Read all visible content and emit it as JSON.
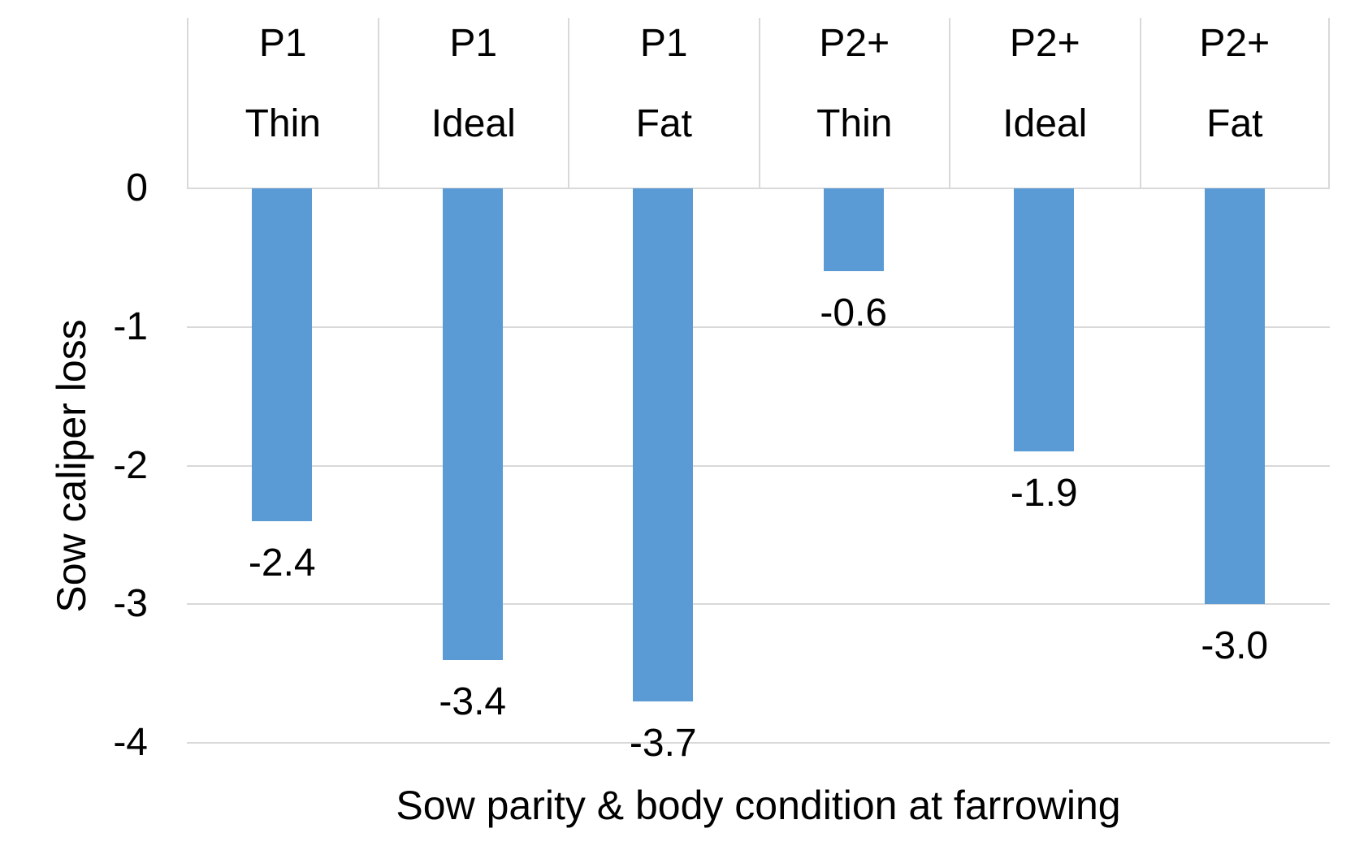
{
  "chart_data": {
    "type": "bar",
    "title": "",
    "xlabel": "Sow parity & body condition at farrowing",
    "ylabel": "Sow caliper loss",
    "categories": [
      {
        "parity": "P1",
        "condition": "Thin"
      },
      {
        "parity": "P1",
        "condition": "Ideal"
      },
      {
        "parity": "P1",
        "condition": "Fat"
      },
      {
        "parity": "P2+",
        "condition": "Thin"
      },
      {
        "parity": "P2+",
        "condition": "Ideal"
      },
      {
        "parity": "P2+",
        "condition": "Fat"
      }
    ],
    "values": [
      -2.4,
      -3.4,
      -3.7,
      -0.6,
      -1.9,
      -3.0
    ],
    "data_labels": [
      "-2.4",
      "-3.4",
      "-3.7",
      "-0.6",
      "-1.9",
      "-3.0"
    ],
    "yticks": [
      0,
      -1,
      -2,
      -3,
      -4
    ],
    "ytick_labels": [
      "0",
      "-1",
      "-2",
      "-3",
      "-4"
    ],
    "ylim": [
      -4,
      0
    ],
    "grid": true,
    "legend": false,
    "bar_color": "#5b9bd5",
    "gridline_color": "#d9d9d9",
    "text_color": "#000000"
  }
}
